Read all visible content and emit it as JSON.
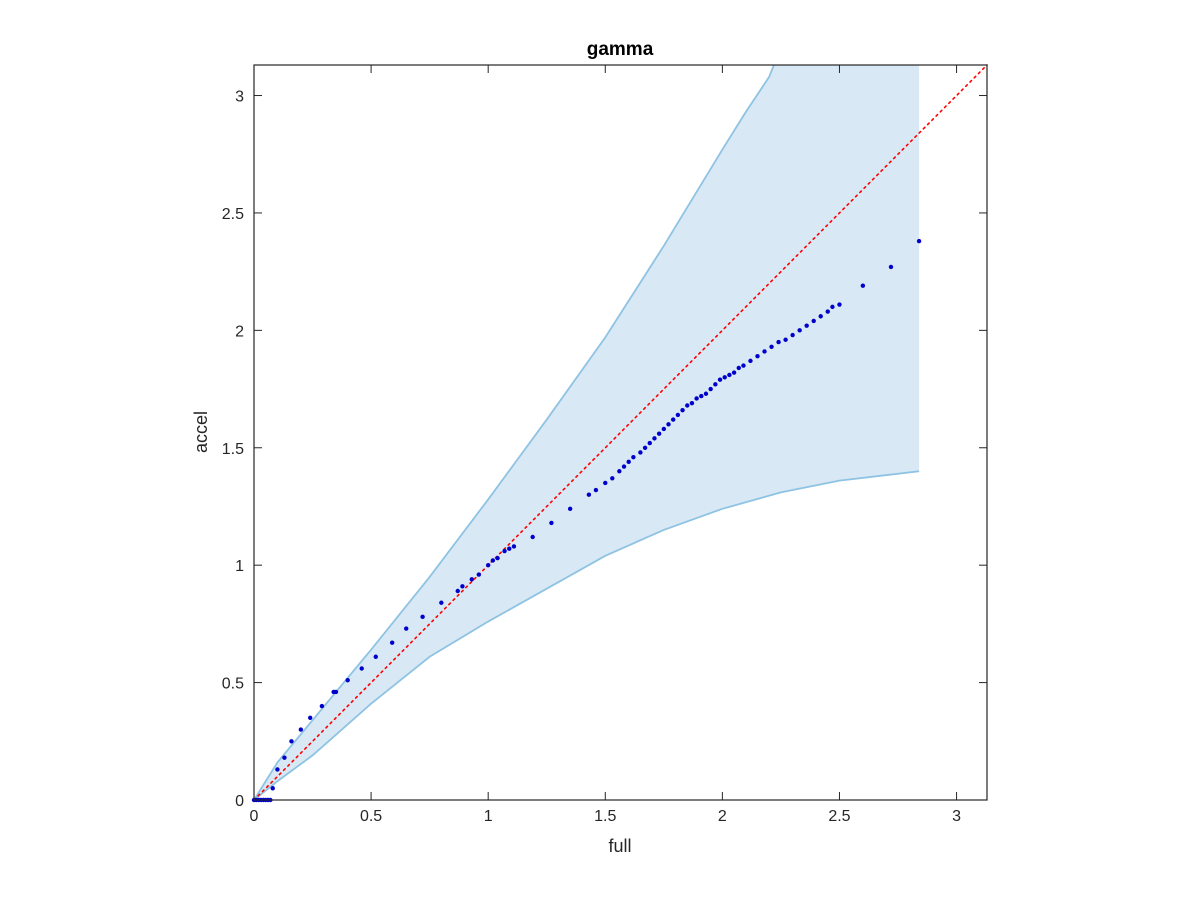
{
  "chart_data": {
    "type": "scatter",
    "title": "gamma",
    "xlabel": "full",
    "ylabel": "accel",
    "xlim": [
      0,
      3.13
    ],
    "ylim": [
      0,
      3.13
    ],
    "xticks": [
      0,
      0.5,
      1,
      1.5,
      2,
      2.5,
      3
    ],
    "yticks": [
      0,
      0.5,
      1,
      1.5,
      2,
      2.5,
      3
    ],
    "xtick_labels": [
      "0",
      "0.5",
      "1",
      "1.5",
      "2",
      "2.5",
      "3"
    ],
    "ytick_labels": [
      "0",
      "0.5",
      "1",
      "1.5",
      "2",
      "2.5",
      "3"
    ],
    "grid": false,
    "box": true,
    "colors": {
      "points": "#0000cc",
      "reference_line": "#ff0000",
      "band_fill": "#d8e8f4",
      "band_edge": "#8ec3e3",
      "axes": "#262626"
    },
    "reference_line": {
      "style": "dotted",
      "x": [
        0,
        3.13
      ],
      "y": [
        0,
        3.13
      ]
    },
    "band": {
      "upper": [
        [
          0,
          0
        ],
        [
          0.1,
          0.16
        ],
        [
          0.25,
          0.34
        ],
        [
          0.5,
          0.64
        ],
        [
          0.75,
          0.95
        ],
        [
          1,
          1.28
        ],
        [
          1.25,
          1.62
        ],
        [
          1.5,
          1.97
        ],
        [
          1.75,
          2.36
        ],
        [
          2,
          2.77
        ],
        [
          2.1,
          2.93
        ],
        [
          2.2,
          3.08
        ],
        [
          2.22,
          3.13
        ]
      ],
      "lower": [
        [
          0,
          0
        ],
        [
          0.1,
          0.08
        ],
        [
          0.25,
          0.19
        ],
        [
          0.5,
          0.41
        ],
        [
          0.75,
          0.61
        ],
        [
          1,
          0.76
        ],
        [
          1.25,
          0.9
        ],
        [
          1.5,
          1.04
        ],
        [
          1.75,
          1.15
        ],
        [
          2,
          1.24
        ],
        [
          2.25,
          1.31
        ],
        [
          2.5,
          1.36
        ],
        [
          2.84,
          1.4
        ]
      ],
      "x_end": 2.84
    },
    "series": [
      {
        "x": [
          0.0,
          0.01,
          0.02,
          0.03,
          0.04,
          0.05,
          0.06,
          0.07,
          0.08,
          0.1,
          0.13,
          0.16,
          0.2,
          0.24,
          0.29,
          0.34,
          0.35,
          0.4,
          0.46,
          0.52,
          0.59,
          0.65,
          0.72,
          0.8,
          0.87,
          0.89,
          0.93,
          0.96,
          1.0,
          1.02,
          1.04,
          1.07,
          1.09,
          1.11,
          1.19,
          1.27,
          1.35,
          1.43,
          1.46,
          1.5,
          1.53,
          1.56,
          1.58,
          1.6,
          1.62,
          1.65,
          1.67,
          1.69,
          1.71,
          1.73,
          1.75,
          1.77,
          1.79,
          1.81,
          1.83,
          1.85,
          1.87,
          1.89,
          1.91,
          1.93,
          1.95,
          1.97,
          1.99,
          2.01,
          2.03,
          2.05,
          2.07,
          2.09,
          2.12,
          2.15,
          2.18,
          2.21,
          2.24,
          2.27,
          2.3,
          2.33,
          2.36,
          2.39,
          2.42,
          2.45,
          2.47,
          2.5,
          2.6,
          2.72,
          2.84
        ],
        "y": [
          0.0,
          0.0,
          0.0,
          0.0,
          0.0,
          0.0,
          0.0,
          0.0,
          0.05,
          0.13,
          0.18,
          0.25,
          0.3,
          0.35,
          0.4,
          0.46,
          0.46,
          0.51,
          0.56,
          0.61,
          0.67,
          0.73,
          0.78,
          0.84,
          0.89,
          0.91,
          0.94,
          0.96,
          1.0,
          1.02,
          1.03,
          1.06,
          1.07,
          1.08,
          1.12,
          1.18,
          1.24,
          1.3,
          1.32,
          1.35,
          1.37,
          1.4,
          1.42,
          1.44,
          1.46,
          1.48,
          1.5,
          1.52,
          1.54,
          1.56,
          1.58,
          1.6,
          1.62,
          1.64,
          1.66,
          1.68,
          1.69,
          1.71,
          1.72,
          1.73,
          1.75,
          1.77,
          1.79,
          1.8,
          1.81,
          1.82,
          1.84,
          1.85,
          1.87,
          1.89,
          1.91,
          1.93,
          1.95,
          1.96,
          1.98,
          2.0,
          2.02,
          2.04,
          2.06,
          2.08,
          2.1,
          2.11,
          2.19,
          2.27,
          2.38
        ]
      }
    ]
  }
}
